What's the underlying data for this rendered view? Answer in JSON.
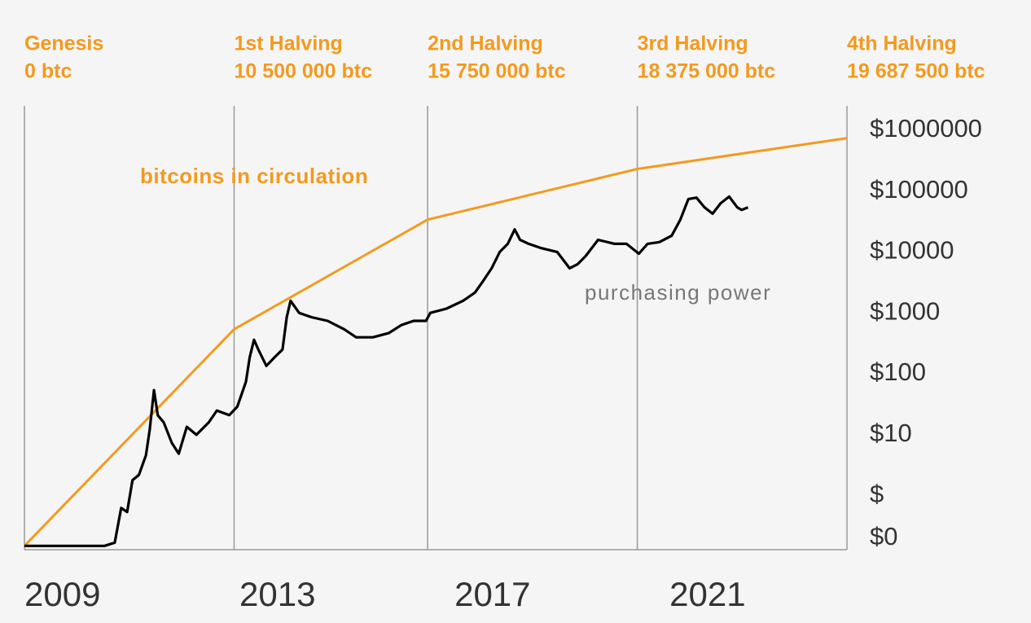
{
  "chart_data": {
    "type": "line",
    "log_y": true,
    "xlim": [
      2009,
      2024.3
    ],
    "xticks": [
      2009,
      2013,
      2017,
      2021
    ],
    "ylim": [
      0.13,
      2500000
    ],
    "yticks": [
      {
        "value": 0.2,
        "label": "$0"
      },
      {
        "value": 1,
        "label": "$"
      },
      {
        "value": 10,
        "label": "$10"
      },
      {
        "value": 100,
        "label": "$100"
      },
      {
        "value": 1000,
        "label": "$1000"
      },
      {
        "value": 10000,
        "label": "$10000"
      },
      {
        "value": 100000,
        "label": "$100000"
      },
      {
        "value": 1000000,
        "label": "$1000000"
      }
    ],
    "halvings": [
      {
        "x": 2009,
        "label": "Genesis",
        "supply": "0 btc"
      },
      {
        "x": 2012.9,
        "label": "1st Halving",
        "supply": "10 500 000 btc"
      },
      {
        "x": 2016.5,
        "label": "2nd Halving",
        "supply": "15 750 000 btc"
      },
      {
        "x": 2020.4,
        "label": "3rd Halving",
        "supply": "18 375 000 btc"
      },
      {
        "x": 2024.3,
        "label": "4th Halving",
        "supply": "19 687 500  btc"
      }
    ],
    "series": [
      {
        "name": "bitcoins in circulation",
        "color": "#f39a1e",
        "x": [
          2009,
          2012.9,
          2016.5,
          2020.4,
          2024.3
        ],
        "values": [
          0.15,
          540,
          34000,
          230000,
          740000
        ]
      },
      {
        "name": "purchasing power",
        "color": "#000000",
        "x": [
          2009,
          2010.49,
          2010.68,
          2010.8,
          2010.91,
          2011.01,
          2011.13,
          2011.26,
          2011.33,
          2011.41,
          2011.48,
          2011.59,
          2011.74,
          2011.87,
          2012.02,
          2012.2,
          2012.43,
          2012.58,
          2012.81,
          2012.96,
          2013.12,
          2013.19,
          2013.27,
          2013.35,
          2013.5,
          2013.65,
          2013.8,
          2013.88,
          2013.95,
          2014.11,
          2014.34,
          2014.64,
          2014.95,
          2015.17,
          2015.48,
          2015.78,
          2016.01,
          2016.24,
          2016.47,
          2016.55,
          2016.85,
          2017.16,
          2017.38,
          2017.54,
          2017.69,
          2017.84,
          2017.99,
          2018.12,
          2018.22,
          2018.38,
          2018.6,
          2018.91,
          2019.14,
          2019.29,
          2019.44,
          2019.67,
          2019.98,
          2020.2,
          2020.43,
          2020.59,
          2020.81,
          2021.04,
          2021.2,
          2021.35,
          2021.5,
          2021.65,
          2021.8,
          2021.95,
          2022.11,
          2022.26,
          2022.34,
          2022.46
        ],
        "values": [
          0.15,
          0.15,
          0.17,
          0.63,
          0.54,
          1.8,
          2.2,
          4.6,
          12,
          54,
          21,
          16,
          7.4,
          4.9,
          13.5,
          10,
          16,
          25,
          21,
          29,
          74,
          186,
          363,
          251,
          135,
          186,
          251,
          851,
          1585,
          1000,
          851,
          741,
          537,
          398,
          398,
          468,
          631,
          741,
          741,
          1000,
          1175,
          1585,
          2154,
          3415,
          5412,
          10000,
          13594,
          23500,
          15849,
          13594,
          11659,
          10000,
          5412,
          6310,
          8577,
          15849,
          13594,
          13594,
          9376,
          13594,
          14500,
          18500,
          34000,
          74000,
          78000,
          54000,
          42500,
          63000,
          81000,
          54000,
          49000,
          54000
        ]
      }
    ]
  }
}
